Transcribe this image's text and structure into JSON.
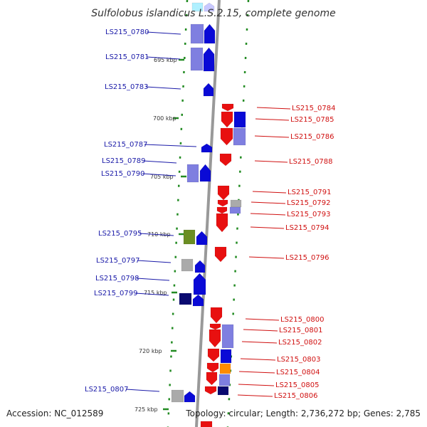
{
  "title": "Sulfolobus islandicus L.S.2.15, complete genome",
  "footer": {
    "accession": "Accession: NC_012589",
    "topology": "Topology: circular; Length: 2,736,272 bp; Genes: 2,785"
  },
  "colors": {
    "left_label": "#1a1aa8",
    "right_label": "#d01010",
    "backbone": "#999999",
    "tick": "#228b22",
    "gene_blue": "#0a0ad6",
    "gene_red": "#e81010",
    "gene_lavender": "#7f7fe0",
    "gene_navy": "#0a0a70",
    "gene_grey": "#aaaaaa",
    "gene_olive": "#6b8e23",
    "gene_orange": "#ff8c00",
    "gene_cyan": "#b0f0ff"
  },
  "kbp_labels": [
    "695 kbp",
    "700 kbp",
    "705 kbp",
    "710 kbp",
    "715 kbp",
    "720 kbp",
    "725 kbp"
  ],
  "left_loci": [
    "LS215_0780",
    "LS215_0781",
    "LS215_0783",
    "LS215_0787",
    "LS215_0789",
    "LS215_0790",
    "LS215_0795",
    "LS215_0797",
    "LS215_0798",
    "LS215_0799",
    "LS215_0807"
  ],
  "right_loci": [
    "LS215_0784",
    "LS215_0785",
    "LS215_0786",
    "LS215_0788",
    "LS215_0791",
    "LS215_0792",
    "LS215_0793",
    "LS215_0794",
    "LS215_0796",
    "LS215_0800",
    "LS215_0801",
    "LS215_0802",
    "LS215_0803",
    "LS215_0804",
    "LS215_0805",
    "LS215_0806"
  ]
}
